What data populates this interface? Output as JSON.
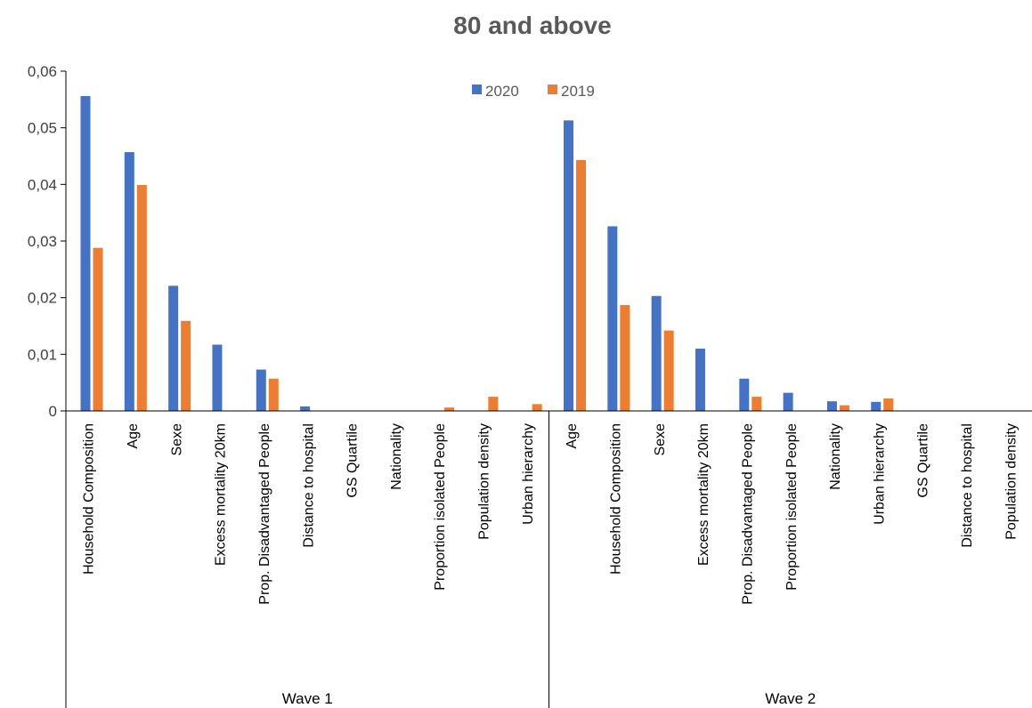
{
  "chart_data": {
    "type": "bar",
    "title": "80 and above",
    "xlabel": "",
    "ylabel": "",
    "ylim": [
      0,
      0.06
    ],
    "yticks": [
      "0",
      "0,01",
      "0,02",
      "0,03",
      "0,04",
      "0,05",
      "0,06"
    ],
    "grid": false,
    "legend": "top-center",
    "groups": [
      {
        "name": "Wave 1",
        "categories": [
          "Household Composition",
          "Age",
          "Sexe",
          "Excess mortality 20km",
          "Prop. Disadvantaged People",
          "Distance to hospital",
          "GS Quartile",
          "Nationality",
          "Proportion isolated People",
          "Population density",
          "Urban hierarchy"
        ],
        "series": [
          {
            "name": "2020",
            "values": [
              0.0556,
              0.0457,
              0.0221,
              0.0117,
              0.0073,
              0.0008,
              0,
              0,
              0,
              0,
              0
            ]
          },
          {
            "name": "2019",
            "values": [
              0.0288,
              0.0399,
              0.0159,
              0,
              0.0057,
              0,
              0,
              0,
              0.0006,
              0.0025,
              0.0012
            ]
          }
        ]
      },
      {
        "name": "Wave 2",
        "categories": [
          "Age",
          "Household Composition",
          "Sexe",
          "Excess mortality 20km",
          "Prop. Disadvantaged People",
          "Proportion isolated People",
          "Nationality",
          "Urban hierarchy",
          "GS Quartile",
          "Distance to hospital",
          "Population density"
        ],
        "series": [
          {
            "name": "2020",
            "values": [
              0.0513,
              0.0326,
              0.0203,
              0.011,
              0.0057,
              0.0032,
              0.0017,
              0.0016,
              0,
              0,
              0
            ]
          },
          {
            "name": "2019",
            "values": [
              0.0443,
              0.0187,
              0.0142,
              0,
              0.0025,
              0,
              0.001,
              0.0022,
              0,
              0,
              0
            ]
          }
        ]
      }
    ],
    "colors": {
      "2020": "#4472c4",
      "2019": "#ed7d31"
    }
  }
}
